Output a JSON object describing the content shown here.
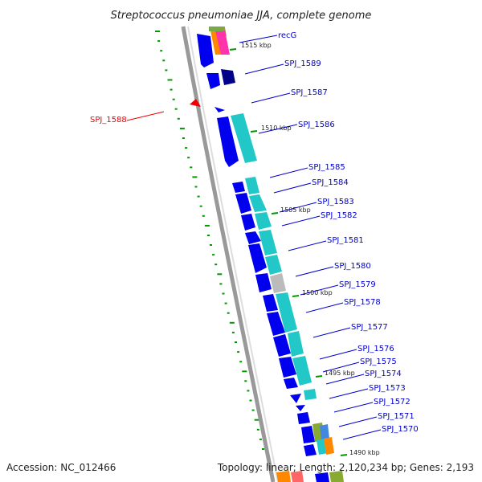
{
  "title": "Streptococcus pneumoniae JJA, complete genome",
  "accession": "Accession: NC_012466",
  "summary": "Topology: linear; Length: 2,120,234 bp; Genes: 2,193",
  "colors": {
    "gene_forward": "#0000ee",
    "gene_reverse_highlight": "#ee0000",
    "label_line": "#0000cc",
    "cds_cyan": "#22c8c8",
    "cds_grey": "#bbbbbb",
    "tick_green": "#009900",
    "backbone": "#888888"
  },
  "ticks": [
    {
      "label": "1515 kbp"
    },
    {
      "label": "1510 kbp"
    },
    {
      "label": "1505 kbp"
    },
    {
      "label": "1500 kbp"
    },
    {
      "label": "1495 kbp"
    },
    {
      "label": "1490 kbp"
    }
  ],
  "genes": [
    {
      "name": "recG",
      "color": "blue"
    },
    {
      "name": "SPJ_1589",
      "color": "blue"
    },
    {
      "name": "SPJ_1587",
      "color": "blue"
    },
    {
      "name": "SPJ_1588",
      "color": "red"
    },
    {
      "name": "SPJ_1586",
      "color": "blue"
    },
    {
      "name": "SPJ_1585",
      "color": "blue"
    },
    {
      "name": "SPJ_1584",
      "color": "blue"
    },
    {
      "name": "SPJ_1583",
      "color": "blue"
    },
    {
      "name": "SPJ_1582",
      "color": "blue"
    },
    {
      "name": "SPJ_1581",
      "color": "blue"
    },
    {
      "name": "SPJ_1580",
      "color": "blue"
    },
    {
      "name": "SPJ_1579",
      "color": "blue"
    },
    {
      "name": "SPJ_1578",
      "color": "blue"
    },
    {
      "name": "SPJ_1577",
      "color": "blue"
    },
    {
      "name": "SPJ_1576",
      "color": "blue"
    },
    {
      "name": "SPJ_1575",
      "color": "blue"
    },
    {
      "name": "SPJ_1574",
      "color": "blue"
    },
    {
      "name": "SPJ_1573",
      "color": "blue"
    },
    {
      "name": "SPJ_1572",
      "color": "blue"
    },
    {
      "name": "SPJ_1571",
      "color": "blue"
    },
    {
      "name": "SPJ_1570",
      "color": "blue"
    }
  ]
}
